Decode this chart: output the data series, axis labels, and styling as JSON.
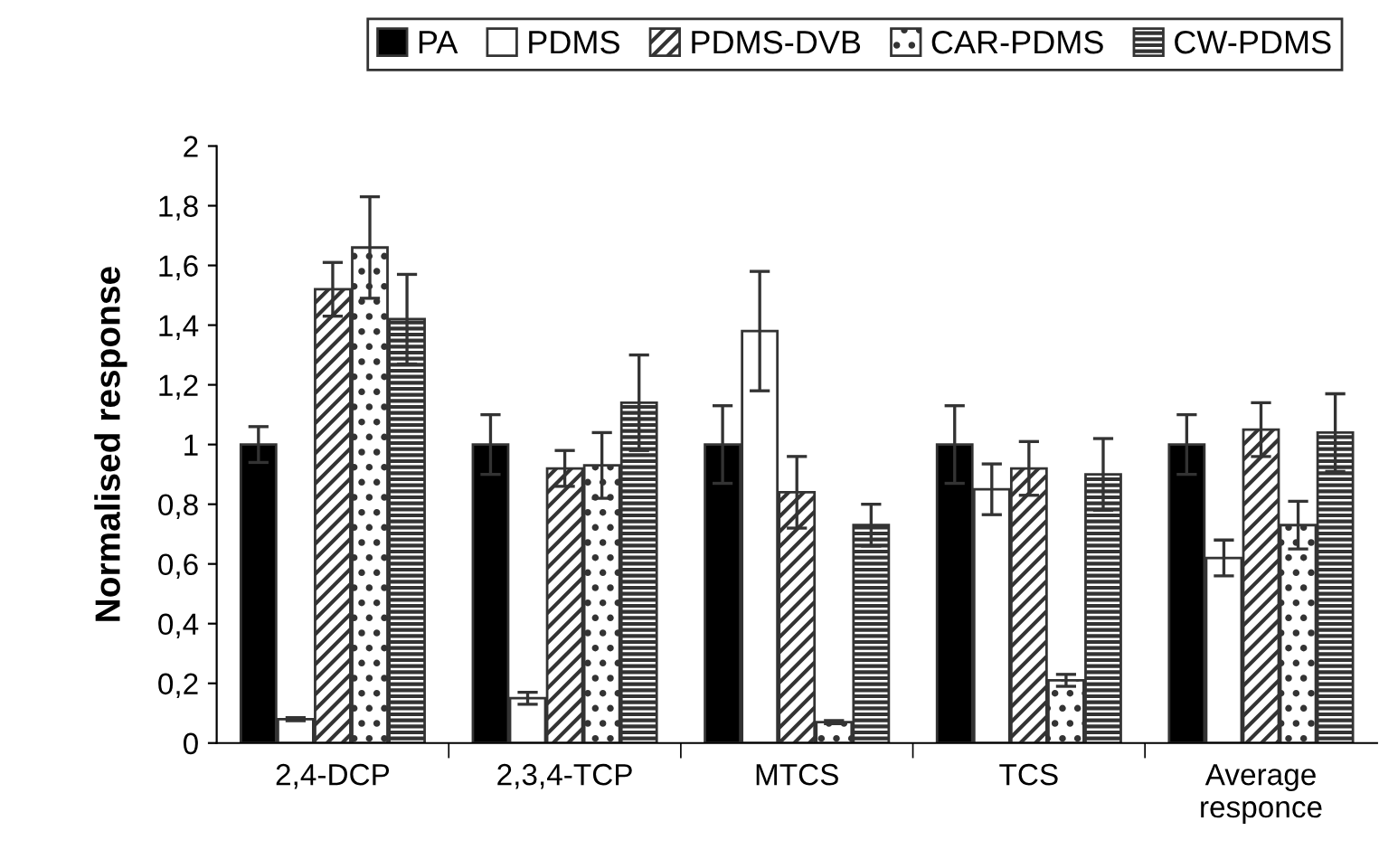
{
  "chart_data": {
    "type": "bar",
    "ylabel": "Normalised response",
    "categories": [
      "2,4-DCP",
      "2,3,4-TCP",
      "MTCS",
      "TCS",
      "Average\nresponce"
    ],
    "series": [
      {
        "name": "PA",
        "color": "#000000",
        "values": [
          1.0,
          1.0,
          1.0,
          1.0,
          1.0
        ],
        "errors": [
          0.06,
          0.1,
          0.13,
          0.13,
          0.1
        ]
      },
      {
        "name": "PDMS",
        "color": "#ffffff",
        "values": [
          0.08,
          0.15,
          1.38,
          0.85,
          0.62
        ],
        "errors": [
          0.005,
          0.02,
          0.2,
          0.085,
          0.06
        ]
      },
      {
        "name": "PDMS-DVB",
        "color": "#ffffff",
        "values": [
          1.52,
          0.92,
          0.84,
          0.92,
          1.05
        ],
        "errors": [
          0.09,
          0.06,
          0.12,
          0.09,
          0.09
        ]
      },
      {
        "name": "CAR-PDMS",
        "color": "#ffffff",
        "values": [
          1.66,
          0.93,
          0.07,
          0.21,
          0.73
        ],
        "errors": [
          0.17,
          0.11,
          0.005,
          0.02,
          0.08
        ]
      },
      {
        "name": "CW-PDMS",
        "color": "#ffffff",
        "values": [
          1.42,
          1.14,
          0.73,
          0.9,
          1.04
        ],
        "errors": [
          0.15,
          0.16,
          0.07,
          0.12,
          0.13
        ]
      }
    ],
    "ylim": [
      0,
      2
    ],
    "yticks": [
      0,
      {
        "value": 0.2,
        "label": "0,2"
      },
      {
        "value": 0.4,
        "label": "0,4"
      },
      {
        "value": 0.6,
        "label": "0,6"
      },
      {
        "value": 0.8,
        "label": "0,8"
      },
      1,
      {
        "value": 1.2,
        "label": "1,2"
      },
      {
        "value": 1.4,
        "label": "1,4"
      },
      {
        "value": 1.6,
        "label": "1,6"
      },
      {
        "value": 1.8,
        "label": "1,8"
      },
      2
    ],
    "grid": false,
    "legend": "top"
  }
}
